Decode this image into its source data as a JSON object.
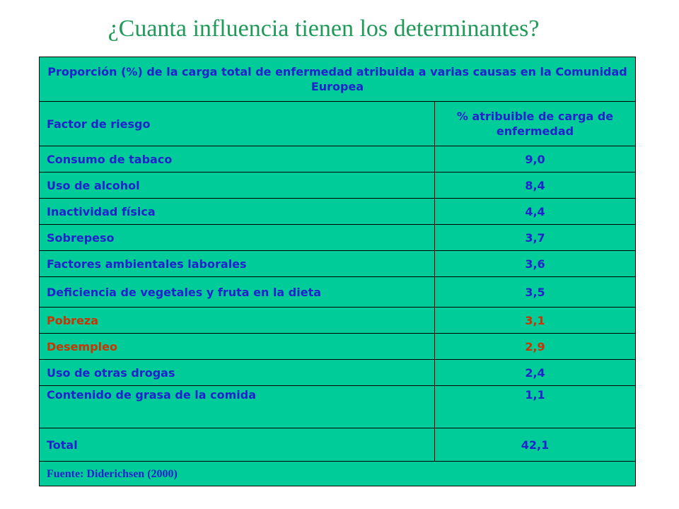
{
  "title": "¿Cuanta influencia tienen los determinantes?",
  "table": {
    "caption": "Proporción (%) de la carga total de enfermedad atribuida a varias causas en la Comunidad Europea",
    "col_headers": [
      "Factor de riesgo",
      "% atribuible de carga de enfermedad"
    ],
    "rows": [
      {
        "factor": "Consumo de tabaco",
        "value": "9,0"
      },
      {
        "factor": "Uso de alcohol",
        "value": "8,4"
      },
      {
        "factor": "Inactividad física",
        "value": "4,4"
      },
      {
        "factor": "Sobrepeso",
        "value": "3,7"
      },
      {
        "factor": "Factores ambientales laborales",
        "value": "3,6"
      },
      {
        "factor": "Deficiencia de vegetales y fruta en la dieta",
        "value": "3,5"
      },
      {
        "factor": "Pobreza",
        "value": "3,1"
      },
      {
        "factor": "Desempleo",
        "value": "2,9"
      },
      {
        "factor": "Uso de otras drogas",
        "value": "2,4"
      },
      {
        "factor": "Contenido de grasa de la comida",
        "value": "1,1"
      }
    ],
    "total_label": "Total",
    "total_value": "42,1",
    "source": "Fuente: Diderichsen (2000)"
  },
  "colors": {
    "title": "#1f9a58",
    "table_bg": "#00cc99",
    "text": "#2222cc",
    "highlight": "#cc3300"
  }
}
